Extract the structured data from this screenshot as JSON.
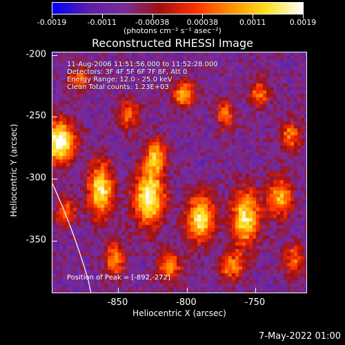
{
  "colorbar": {
    "tick_labels": [
      "-0.0019",
      "-0.0011",
      "-0.00038",
      "0.00038",
      "0.0011",
      "0.0019"
    ],
    "units": "(photons cm⁻² s⁻¹ asec⁻²)",
    "min": -0.0019,
    "max": 0.0019
  },
  "title": "Reconstructed RHESSI Image",
  "info": {
    "time": "11-Aug-2006 11:51:56.000 to 11:52:28.000",
    "detectors": "Detectors: 3F 4F 5F 6F 7F 8F, Att 0",
    "energy": "Energy Range: 12.0 - 25.0 keV",
    "clean": "Clean     Total counts: 1.23E+03"
  },
  "peak": "Position of Peak = [-892,-272]",
  "axes": {
    "xlabel": "Heliocentric X (arcsec)",
    "ylabel": "Heliocentric Y (arcsec)",
    "xticks": [
      "-850",
      "-800",
      "-750"
    ],
    "yticks": [
      "-200",
      "-250",
      "-300",
      "-350"
    ],
    "xlim": [
      -898,
      -712
    ],
    "ylim": [
      -393,
      -198
    ]
  },
  "timestamp": "7-May-2022 01:00",
  "colors": {
    "background": "#000000",
    "text": "#ffffff",
    "colormap": [
      "#0000ff",
      "#5a1ea8",
      "#7a2c9a",
      "#a01010",
      "#ff3000",
      "#ff9000",
      "#ffe020",
      "#ffffff"
    ]
  }
}
